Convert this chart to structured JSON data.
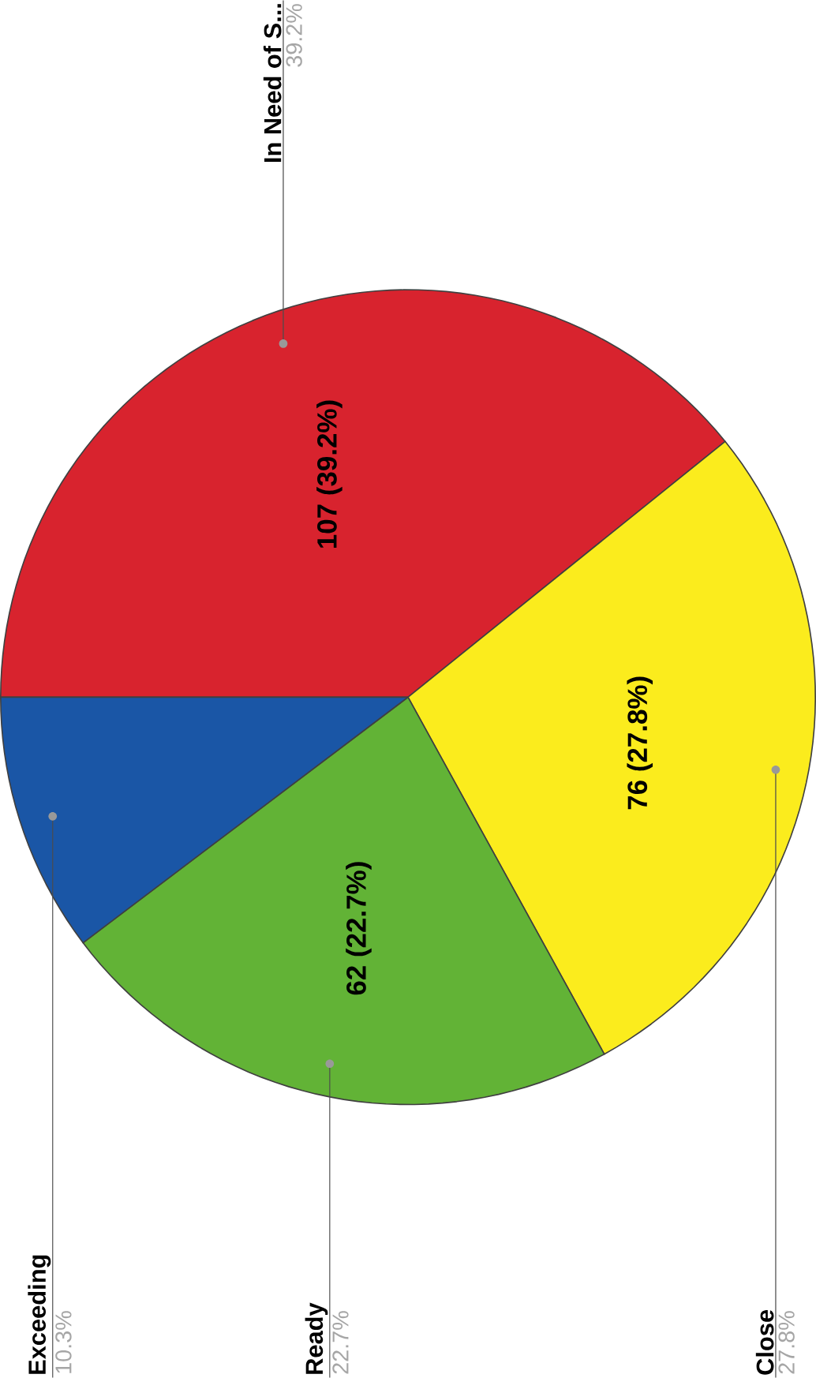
{
  "chart_data": {
    "type": "pie",
    "categories": [
      "In Need of S...",
      "Close",
      "Ready",
      "Exceeding"
    ],
    "values": [
      39.2,
      27.8,
      22.7,
      10.3
    ],
    "colors": [
      "#d8232e",
      "#fbec1d",
      "#62b336",
      "#1a56a6"
    ],
    "value_labels": [
      "39.2%",
      "27.8%",
      "22.7%",
      "10.3%"
    ],
    "annotations": [
      "107 (39.2%)",
      "76 (27.8%)",
      "62 (22.7%)"
    ]
  }
}
